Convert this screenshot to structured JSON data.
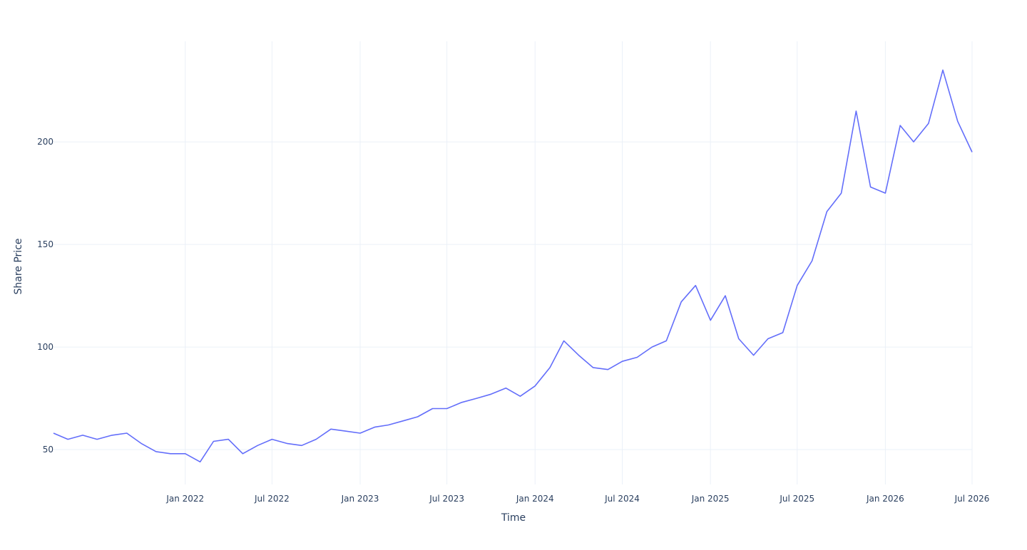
{
  "chart_data": {
    "type": "line",
    "title": "",
    "xlabel": "Time",
    "ylabel": "Share Price",
    "xlim": [
      "2021-04-01",
      "2026-07-01"
    ],
    "ylim": [
      33,
      249
    ],
    "grid": true,
    "legend": "none",
    "x_ticks": [
      {
        "date": "2022-01-01",
        "label": "Jan 2022"
      },
      {
        "date": "2022-07-01",
        "label": "Jul 2022"
      },
      {
        "date": "2023-01-01",
        "label": "Jan 2023"
      },
      {
        "date": "2023-07-01",
        "label": "Jul 2023"
      },
      {
        "date": "2024-01-01",
        "label": "Jan 2024"
      },
      {
        "date": "2024-07-01",
        "label": "Jul 2024"
      },
      {
        "date": "2025-01-01",
        "label": "Jan 2025"
      },
      {
        "date": "2025-07-01",
        "label": "Jul 2025"
      },
      {
        "date": "2026-01-01",
        "label": "Jan 2026"
      },
      {
        "date": "2026-07-01",
        "label": "Jul 2026"
      }
    ],
    "y_ticks": [
      {
        "value": 50,
        "label": "50"
      },
      {
        "value": 100,
        "label": "100"
      },
      {
        "value": 150,
        "label": "150"
      },
      {
        "value": 200,
        "label": "200"
      }
    ],
    "colors": {
      "line": "#636efa",
      "grid": "#ebf0f8",
      "text": "#2a3f5f"
    },
    "series": [
      {
        "x": [
          "2021-04-01",
          "2021-05-01",
          "2021-06-01",
          "2021-07-01",
          "2021-08-01",
          "2021-09-01",
          "2021-10-01",
          "2021-11-01",
          "2021-12-01",
          "2022-01-01",
          "2022-02-01",
          "2022-03-01",
          "2022-04-01",
          "2022-05-01",
          "2022-06-01",
          "2022-07-01",
          "2022-08-01",
          "2022-09-01",
          "2022-10-01",
          "2022-11-01",
          "2022-12-01",
          "2023-01-01",
          "2023-02-01",
          "2023-03-01",
          "2023-04-01",
          "2023-05-01",
          "2023-06-01",
          "2023-07-01",
          "2023-08-01",
          "2023-09-01",
          "2023-10-01",
          "2023-11-01",
          "2023-12-01",
          "2024-01-01",
          "2024-02-01",
          "2024-03-01",
          "2024-04-01",
          "2024-05-01",
          "2024-06-01",
          "2024-07-01",
          "2024-08-01",
          "2024-09-01",
          "2024-10-01",
          "2024-11-01",
          "2024-12-01",
          "2025-01-01",
          "2025-02-01",
          "2025-03-01",
          "2025-04-01",
          "2025-05-01",
          "2025-06-01",
          "2025-07-01",
          "2025-08-01",
          "2025-09-01",
          "2025-10-01",
          "2025-11-01",
          "2025-12-01",
          "2026-01-01",
          "2026-02-01",
          "2026-03-01",
          "2026-04-01",
          "2026-05-01",
          "2026-06-01",
          "2026-07-01"
        ],
        "y": [
          58,
          55,
          57,
          55,
          57,
          58,
          53,
          49,
          48,
          48,
          44,
          54,
          55,
          48,
          52,
          55,
          53,
          52,
          55,
          60,
          59,
          58,
          61,
          62,
          64,
          66,
          70,
          70,
          73,
          75,
          77,
          80,
          76,
          81,
          90,
          103,
          96,
          90,
          89,
          93,
          95,
          100,
          103,
          122,
          130,
          113,
          125,
          104,
          96,
          104,
          107,
          130,
          142,
          166,
          175,
          215,
          178,
          175,
          208,
          200,
          209,
          235,
          210,
          195
        ]
      }
    ]
  }
}
